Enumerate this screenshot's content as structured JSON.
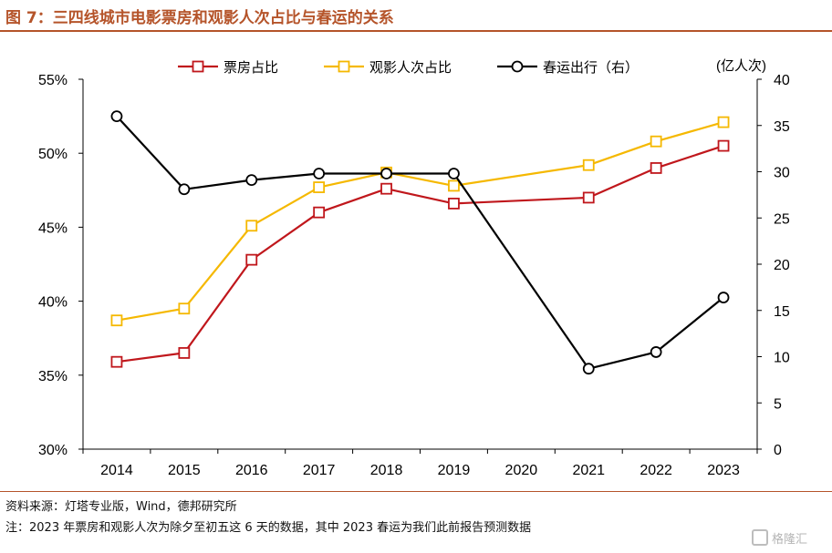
{
  "header": {
    "title": "图 7：三四线城市电影票房和观影人次占比与春运的关系"
  },
  "footer": {
    "source": "资料来源：灯塔专业版，Wind，德邦研究所",
    "note": "注：2023 年票房和观影人次为除夕至初五这 6 天的数据，其中 2023 春运为我们此前报告预测数据"
  },
  "watermark": {
    "text": "格隆汇"
  },
  "chart_data": {
    "type": "line",
    "categories": [
      "2014",
      "2015",
      "2016",
      "2017",
      "2018",
      "2019",
      "2020",
      "2021",
      "2022",
      "2023"
    ],
    "y_left": {
      "ylim": [
        30,
        55
      ],
      "ticks": [
        30,
        35,
        40,
        45,
        50,
        55
      ],
      "tick_labels": [
        "30%",
        "35%",
        "40%",
        "45%",
        "50%",
        "55%"
      ]
    },
    "y_right": {
      "ylim": [
        0,
        40
      ],
      "ticks": [
        0,
        5,
        10,
        15,
        20,
        25,
        30,
        35,
        40
      ],
      "tick_labels": [
        "0",
        "5",
        "10",
        "15",
        "20",
        "25",
        "30",
        "35",
        "40"
      ],
      "unit_label": "(亿人次)"
    },
    "legend_position": "top",
    "grid": false,
    "series": [
      {
        "name": "票房占比",
        "axis": "left",
        "color": "#c0171c",
        "marker": "square",
        "values": [
          35.9,
          36.5,
          42.8,
          46.0,
          47.6,
          46.6,
          null,
          47.0,
          49.0,
          50.5
        ]
      },
      {
        "name": "观影人次占比",
        "axis": "left",
        "color": "#f5b800",
        "marker": "square",
        "values": [
          38.7,
          39.5,
          45.1,
          47.7,
          48.7,
          47.8,
          null,
          49.2,
          50.8,
          52.1
        ]
      },
      {
        "name": "春运出行（右）",
        "axis": "right",
        "color": "#000000",
        "marker": "circle",
        "values": [
          36.0,
          28.1,
          29.1,
          29.8,
          29.8,
          29.8,
          null,
          8.7,
          10.5,
          16.4
        ]
      }
    ]
  }
}
